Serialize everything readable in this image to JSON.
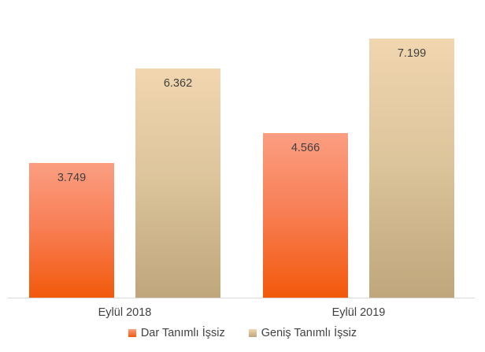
{
  "chart_data": {
    "type": "bar",
    "title": "",
    "xlabel": "",
    "ylabel": "",
    "categories": [
      "Eylül 2018",
      "Eylül 2019"
    ],
    "series": [
      {
        "name": "Dar Tanımlı İşsiz",
        "values": [
          3749,
          4566
        ],
        "value_labels": [
          "3.749",
          "4.566"
        ],
        "color_top": "#FB9E82",
        "color_mid": "#F87E54",
        "color_bottom": "#F2590B"
      },
      {
        "name": "Geniş Tanımlı İşsiz",
        "values": [
          6362,
          7199
        ],
        "value_labels": [
          "6.362",
          "7.199"
        ],
        "color_top": "#F1D6AF",
        "color_mid": "#DCC49B",
        "color_bottom": "#BFA67B"
      }
    ],
    "ylim": [
      0,
      8270
    ],
    "grid": false,
    "y_axis_visible": false,
    "legend_position": "bottom",
    "value_label_position": "inside-end",
    "axis_line_color": "#D9D9D9",
    "text_color": "#404040",
    "background_color": "#FFFFFF"
  }
}
